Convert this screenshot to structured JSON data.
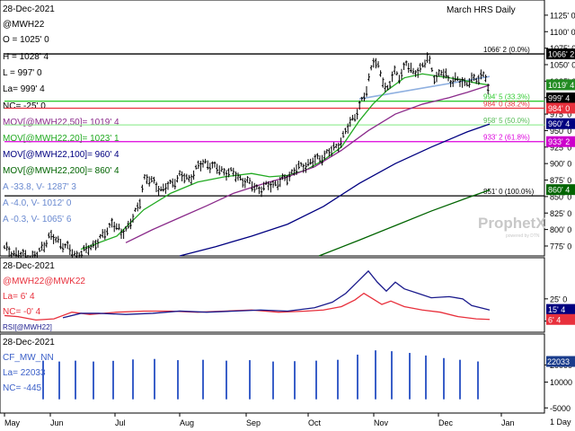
{
  "chart_data": [
    {
      "type": "candlestick",
      "title": "March HRS Daily",
      "date": "28-Dec-2021",
      "symbol": "@MWH22",
      "readout": {
        "O": "O = 1025' 0",
        "H": "H = 1028' 4",
        "L": "L = 997' 0",
        "La": "La= 999' 4",
        "NC": "NC= -25' 0",
        "mov50": "MOV[@MWH22,50]= 1019' 4",
        "mov20": "MOV[@MWH22,20]= 1023' 1",
        "mov100": "MOV[@MWH22,100]= 960' 4",
        "mov200": "MOV[@MWH22,200]= 860' 4",
        "trend1": "A -33.8, V- 1287' 3",
        "trend2": "A -4.0, V- 1012' 0",
        "trend3": "A -0.3, V- 1065' 6"
      },
      "yticks": [
        "1125' 0",
        "1100' 0",
        "1075' 0",
        "1050' 0",
        "1025' 0",
        "1000' 0",
        "975' 0",
        "950' 0",
        "925' 0",
        "900' 0",
        "875' 0",
        "850' 0",
        "825' 0",
        "800' 0",
        "775' 0"
      ],
      "ytick_values": [
        1125,
        1100,
        1075,
        1050,
        1025,
        1000,
        975,
        950,
        925,
        900,
        875,
        850,
        825,
        800,
        775
      ],
      "ylim": [
        760,
        1148
      ],
      "price_labels": [
        {
          "text": "1066' 2",
          "value": 1066.25,
          "bg": "#000000",
          "fg": "#ffffff"
        },
        {
          "text": "1019' 4",
          "value": 1019.5,
          "bg": "#228b22",
          "fg": "#ffffff"
        },
        {
          "text": "999' 4",
          "value": 999.5,
          "bg": "#000000",
          "fg": "#ffffff"
        },
        {
          "text": "984' 0",
          "value": 984,
          "bg": "#e8303c",
          "fg": "#ffffff"
        },
        {
          "text": "960' 4",
          "value": 960.5,
          "bg": "#000080",
          "fg": "#ffffff"
        },
        {
          "text": "933' 2",
          "value": 933.25,
          "bg": "#cc00cc",
          "fg": "#ffffff"
        },
        {
          "text": "860' 4",
          "value": 860.5,
          "bg": "#006400",
          "fg": "#ffffff"
        }
      ],
      "fib_levels": [
        {
          "label": "1066' 2 (0.0%)",
          "value": 1066.25,
          "color": "#000000"
        },
        {
          "label": "994' 5 (33.3%)",
          "value": 994.6,
          "color": "#33cc33"
        },
        {
          "label": "984' 0 (38.2%)",
          "value": 984,
          "color": "#e8303c"
        },
        {
          "label": "958' 5 (50.0%)",
          "value": 958.6,
          "color": "#99ee99"
        },
        {
          "label": "933' 2 (61.8%)",
          "value": 933.25,
          "color": "#dd00dd"
        },
        {
          "label": "851' 0 (100.0%)",
          "value": 851,
          "color": "#000000"
        }
      ],
      "trendline": {
        "color": "#8fb0e0",
        "from": [
          400,
          998
        ],
        "to": [
          545,
          1032
        ]
      },
      "price_path": [
        [
          5,
          771
        ],
        [
          20,
          762
        ],
        [
          40,
          758
        ],
        [
          55,
          790
        ],
        [
          70,
          778
        ],
        [
          85,
          760
        ],
        [
          100,
          772
        ],
        [
          115,
          790
        ],
        [
          125,
          812
        ],
        [
          135,
          793
        ],
        [
          145,
          810
        ],
        [
          155,
          836
        ],
        [
          160,
          879
        ],
        [
          170,
          872
        ],
        [
          180,
          860
        ],
        [
          190,
          868
        ],
        [
          200,
          882
        ],
        [
          210,
          875
        ],
        [
          220,
          895
        ],
        [
          230,
          902
        ],
        [
          240,
          893
        ],
        [
          250,
          888
        ],
        [
          260,
          885
        ],
        [
          270,
          875
        ],
        [
          280,
          868
        ],
        [
          290,
          860
        ],
        [
          300,
          868
        ],
        [
          310,
          870
        ],
        [
          320,
          880
        ],
        [
          330,
          892
        ],
        [
          340,
          898
        ],
        [
          350,
          904
        ],
        [
          360,
          912
        ],
        [
          370,
          920
        ],
        [
          380,
          935
        ],
        [
          390,
          962
        ],
        [
          400,
          985
        ],
        [
          408,
          1010
        ],
        [
          415,
          1060
        ],
        [
          422,
          1042
        ],
        [
          430,
          1010
        ],
        [
          438,
          1038
        ],
        [
          445,
          1030
        ],
        [
          452,
          1055
        ],
        [
          460,
          1035
        ],
        [
          468,
          1045
        ],
        [
          476,
          1060
        ],
        [
          484,
          1030
        ],
        [
          492,
          1040
        ],
        [
          500,
          1025
        ],
        [
          508,
          1030
        ],
        [
          516,
          1018
        ],
        [
          524,
          1030
        ],
        [
          532,
          1025
        ],
        [
          540,
          1040
        ],
        [
          545,
          1000
        ]
      ],
      "moving_averages": [
        {
          "name": "MOV20",
          "color": "#22aa22",
          "points": [
            [
              90,
              770
            ],
            [
              130,
              790
            ],
            [
              160,
              830
            ],
            [
              190,
              855
            ],
            [
              220,
              872
            ],
            [
              250,
              880
            ],
            [
              280,
              885
            ],
            [
              300,
              880
            ],
            [
              320,
              882
            ],
            [
              340,
              890
            ],
            [
              360,
              905
            ],
            [
              380,
              925
            ],
            [
              400,
              965
            ],
            [
              415,
              990
            ],
            [
              430,
              1010
            ],
            [
              450,
              1030
            ],
            [
              470,
              1036
            ],
            [
              490,
              1032
            ],
            [
              510,
              1028
            ],
            [
              530,
              1022
            ],
            [
              545,
              1019
            ]
          ]
        },
        {
          "name": "MOV50",
          "color": "#8a2a8a",
          "points": [
            [
              140,
              780
            ],
            [
              170,
              800
            ],
            [
              200,
              818
            ],
            [
              230,
              836
            ],
            [
              260,
              855
            ],
            [
              290,
              868
            ],
            [
              320,
              880
            ],
            [
              350,
              895
            ],
            [
              380,
              920
            ],
            [
              410,
              950
            ],
            [
              440,
              975
            ],
            [
              470,
              990
            ],
            [
              500,
              1000
            ],
            [
              520,
              1008
            ],
            [
              545,
              1019
            ]
          ]
        },
        {
          "name": "MOV100",
          "color": "#000080",
          "points": [
            [
              200,
              760
            ],
            [
              240,
              774
            ],
            [
              280,
              790
            ],
            [
              320,
              808
            ],
            [
              360,
              835
            ],
            [
              400,
              870
            ],
            [
              440,
              900
            ],
            [
              480,
              925
            ],
            [
              520,
              948
            ],
            [
              545,
              960
            ]
          ]
        },
        {
          "name": "MOV200",
          "color": "#006400",
          "points": [
            [
              355,
              760
            ],
            [
              400,
              784
            ],
            [
              440,
              806
            ],
            [
              480,
              828
            ],
            [
              520,
              848
            ],
            [
              545,
              860
            ]
          ]
        }
      ]
    },
    {
      "type": "line",
      "date": "28-Dec-2021",
      "symbol": "@MWH22@MWK22",
      "readout": {
        "La": "La= 6' 4",
        "NC": "NC= -0' 4"
      },
      "yticks": [
        "25' 0",
        "5' 0"
      ],
      "ytick_values": [
        25,
        5
      ],
      "ylim": [
        -5,
        62
      ],
      "label": "RSI[@MWH22]",
      "series": [
        {
          "name": "@MWH22@MWK22",
          "color": "#e8303c",
          "points": [
            [
              5,
              10
            ],
            [
              20,
              9
            ],
            [
              40,
              6
            ],
            [
              60,
              7
            ],
            [
              80,
              13
            ],
            [
              100,
              11
            ],
            [
              130,
              13
            ],
            [
              160,
              14
            ],
            [
              190,
              14
            ],
            [
              220,
              13
            ],
            [
              250,
              14
            ],
            [
              280,
              15
            ],
            [
              310,
              13
            ],
            [
              340,
              14
            ],
            [
              360,
              15
            ],
            [
              380,
              18
            ],
            [
              395,
              24
            ],
            [
              405,
              30
            ],
            [
              415,
              25
            ],
            [
              425,
              20
            ],
            [
              435,
              23
            ],
            [
              450,
              18
            ],
            [
              470,
              15
            ],
            [
              490,
              13
            ],
            [
              510,
              9
            ],
            [
              530,
              7
            ],
            [
              545,
              6.5
            ]
          ]
        },
        {
          "name": "RSI[@MWH22]",
          "color": "#1a1a8c",
          "points": [
            [
              70,
              8
            ],
            [
              90,
              12
            ],
            [
              110,
              12
            ],
            [
              140,
              11
            ],
            [
              170,
              12
            ],
            [
              200,
              14
            ],
            [
              230,
              13
            ],
            [
              260,
              14
            ],
            [
              290,
              15
            ],
            [
              320,
              14
            ],
            [
              350,
              17
            ],
            [
              370,
              22
            ],
            [
              385,
              30
            ],
            [
              400,
              42
            ],
            [
              410,
              50
            ],
            [
              420,
              40
            ],
            [
              430,
              32
            ],
            [
              440,
              40
            ],
            [
              450,
              34
            ],
            [
              465,
              30
            ],
            [
              480,
              26
            ],
            [
              500,
              27
            ],
            [
              515,
              25
            ],
            [
              525,
              19
            ],
            [
              545,
              15
            ]
          ]
        }
      ],
      "price_labels": [
        {
          "text": "15' 4",
          "value": 15.5,
          "bg": "#000080",
          "fg": "#ffffff"
        },
        {
          "text": "6' 4",
          "value": 6.5,
          "bg": "#e8303c",
          "fg": "#ffffff"
        }
      ]
    },
    {
      "type": "bar",
      "date": "28-Dec-2021",
      "symbol": "CF_MW_NN",
      "readout": {
        "La": "La= 22033",
        "NC": "NC= -445"
      },
      "yticks": [
        "20000",
        "10000",
        "-5000"
      ],
      "ytick_values": [
        20000,
        10000,
        -5000
      ],
      "ylim": [
        -8000,
        38000
      ],
      "price_labels": [
        {
          "text": "22033",
          "value": 22033,
          "bg": "#1a3c8c",
          "fg": "#ffffff"
        }
      ],
      "bars_x": [
        48,
        66,
        84,
        104,
        126,
        148,
        172,
        198,
        226,
        252,
        278,
        304,
        328,
        352,
        376,
        398,
        418,
        436,
        456,
        474,
        494,
        512,
        532
      ],
      "values": [
        22500,
        22000,
        22500,
        22000,
        22400,
        23200,
        23500,
        22800,
        23000,
        22500,
        22800,
        22000,
        22200,
        22500,
        23000,
        26000,
        28500,
        28000,
        27000,
        25500,
        24000,
        23000,
        22033
      ],
      "bar_color": "#3a5fc8"
    }
  ],
  "xaxis": {
    "labels": [
      "May",
      "Jun",
      "Jul",
      "Aug",
      "Sep",
      "Oct",
      "Nov",
      "Dec",
      "Jan"
    ],
    "positions": [
      5,
      56,
      128,
      200,
      274,
      343,
      416,
      488,
      558
    ]
  },
  "interval": "1 Day",
  "watermark": "ProphetX",
  "watermark_sub": "powered by DTN"
}
